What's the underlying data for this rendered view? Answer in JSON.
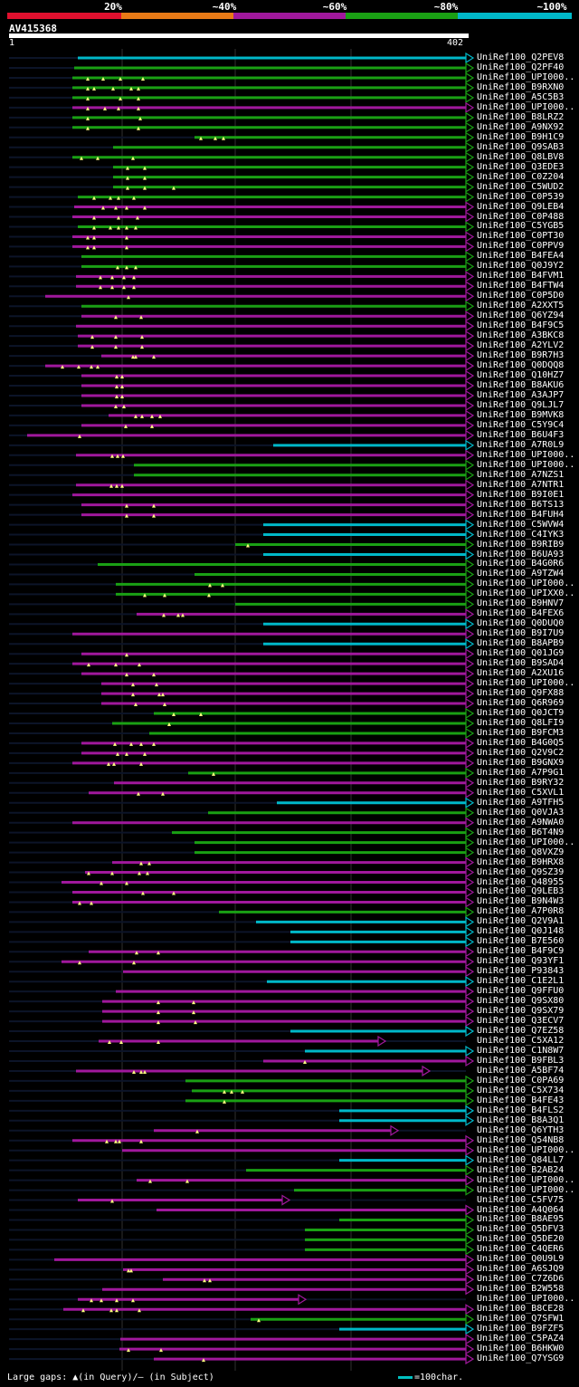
{
  "legend": {
    "labels": [
      "20%",
      "~40%",
      "~60%",
      "~80%",
      "~100%"
    ],
    "colors": [
      "#e0102e",
      "#e87a16",
      "#a0189c",
      "#1aa014",
      "#00b8c8"
    ]
  },
  "query": {
    "id": "AV415368",
    "start": "1",
    "end": "402"
  },
  "colors": {
    "cyan": "#00b8c8",
    "green": "#1aa014",
    "magenta": "#a0189c",
    "grid": "#303030",
    "dark": "#0c1428"
  },
  "hits": [
    {
      "label": "UniRef100_Q2PEV8",
      "c": "cyan",
      "s": 86,
      "e": 515,
      "t": []
    },
    {
      "label": "UniRef100_Q2PF40",
      "c": "green",
      "s": 82,
      "e": 515,
      "t": []
    },
    {
      "label": "UniRef100_UPI000..",
      "c": "green",
      "s": 80,
      "e": 515,
      "t": [
        97,
        114,
        133,
        158
      ]
    },
    {
      "label": "UniRef100_B9RXN0",
      "c": "green",
      "s": 80,
      "e": 515,
      "t": [
        97,
        104,
        125,
        145,
        153
      ]
    },
    {
      "label": "UniRef100_A5C5B3",
      "c": "green",
      "s": 80,
      "e": 515,
      "t": [
        97,
        133,
        153
      ]
    },
    {
      "label": "UniRef100_UPI000..",
      "c": "magenta",
      "s": 80,
      "e": 515,
      "t": [
        97,
        116,
        131,
        153
      ]
    },
    {
      "label": "UniRef100_B8LRZ2",
      "c": "green",
      "s": 80,
      "e": 515,
      "t": [
        97,
        155
      ]
    },
    {
      "label": "UniRef100_A9NX92",
      "c": "green",
      "s": 80,
      "e": 515,
      "t": [
        97,
        153
      ]
    },
    {
      "label": "UniRef100_B9H1C9",
      "c": "green",
      "s": 215,
      "e": 515,
      "t": [
        222,
        238,
        247
      ]
    },
    {
      "label": "UniRef100_Q9SAB3",
      "c": "green",
      "s": 125,
      "e": 515,
      "t": []
    },
    {
      "label": "UniRef100_Q8LBV8",
      "c": "green",
      "s": 80,
      "e": 515,
      "t": [
        90,
        108,
        147
      ]
    },
    {
      "label": "UniRef100_Q3EDE3",
      "c": "green",
      "s": 125,
      "e": 515,
      "t": [
        141,
        160
      ]
    },
    {
      "label": "UniRef100_C0Z204",
      "c": "green",
      "s": 125,
      "e": 515,
      "t": [
        141,
        160
      ]
    },
    {
      "label": "UniRef100_C5WUD2",
      "c": "green",
      "s": 125,
      "e": 515,
      "t": [
        141,
        160,
        192
      ]
    },
    {
      "label": "UniRef100_C0P539",
      "c": "green",
      "s": 86,
      "e": 515,
      "t": [
        104,
        122,
        131,
        148
      ]
    },
    {
      "label": "UniRef100_Q9LEB4",
      "c": "magenta",
      "s": 82,
      "e": 515,
      "t": [
        114,
        128,
        140,
        160
      ]
    },
    {
      "label": "UniRef100_C0P488",
      "c": "magenta",
      "s": 80,
      "e": 515,
      "t": [
        104,
        131,
        152
      ]
    },
    {
      "label": "UniRef100_C5YGB5",
      "c": "green",
      "s": 86,
      "e": 515,
      "t": [
        104,
        122,
        131,
        140,
        150
      ]
    },
    {
      "label": "UniRef100_C0PT30",
      "c": "magenta",
      "s": 80,
      "e": 515,
      "t": [
        97,
        104,
        140
      ]
    },
    {
      "label": "UniRef100_C0PPV9",
      "c": "magenta",
      "s": 80,
      "e": 515,
      "t": [
        97,
        104,
        140
      ]
    },
    {
      "label": "UniRef100_B4FEA4",
      "c": "green",
      "s": 90,
      "e": 515,
      "t": []
    },
    {
      "label": "UniRef100_Q0J9Y2",
      "c": "green",
      "s": 90,
      "e": 515,
      "t": [
        130,
        140,
        150
      ]
    },
    {
      "label": "UniRef100_B4FVM1",
      "c": "magenta",
      "s": 84,
      "e": 515,
      "t": [
        111,
        124,
        137,
        148
      ]
    },
    {
      "label": "UniRef100_B4FTW4",
      "c": "magenta",
      "s": 84,
      "e": 515,
      "t": [
        111,
        124,
        137,
        148
      ]
    },
    {
      "label": "UniRef100_C0P5D0",
      "c": "magenta",
      "s": 50,
      "e": 515,
      "t": [
        142
      ]
    },
    {
      "label": "UniRef100_A2XXT5",
      "c": "green",
      "s": 90,
      "e": 515,
      "t": []
    },
    {
      "label": "UniRef100_Q6YZ94",
      "c": "magenta",
      "s": 90,
      "e": 515,
      "t": [
        128,
        156
      ]
    },
    {
      "label": "UniRef100_B4F9C5",
      "c": "magenta",
      "s": 84,
      "e": 515,
      "t": []
    },
    {
      "label": "UniRef100_A3BKC8",
      "c": "magenta",
      "s": 86,
      "e": 515,
      "t": [
        102,
        128,
        157
      ]
    },
    {
      "label": "UniRef100_A2YLV2",
      "c": "magenta",
      "s": 86,
      "e": 515,
      "t": [
        102,
        128,
        157
      ]
    },
    {
      "label": "UniRef100_B9R7H3",
      "c": "magenta",
      "s": 112,
      "e": 515,
      "t": [
        147,
        150,
        170
      ]
    },
    {
      "label": "UniRef100_Q0DQQ8",
      "c": "magenta",
      "s": 50,
      "e": 515,
      "t": [
        69,
        87,
        101,
        108
      ]
    },
    {
      "label": "UniRef100_Q10HZ7",
      "c": "magenta",
      "s": 90,
      "e": 515,
      "t": [
        129,
        135
      ]
    },
    {
      "label": "UniRef100_B8AKU6",
      "c": "magenta",
      "s": 90,
      "e": 515,
      "t": [
        129,
        135
      ]
    },
    {
      "label": "UniRef100_A3AJP7",
      "c": "magenta",
      "s": 90,
      "e": 515,
      "t": [
        129,
        135
      ]
    },
    {
      "label": "UniRef100_Q9LJL7",
      "c": "magenta",
      "s": 90,
      "e": 515,
      "t": [
        128,
        137
      ]
    },
    {
      "label": "UniRef100_B9MVK8",
      "c": "magenta",
      "s": 120,
      "e": 515,
      "t": [
        150,
        157,
        168,
        177
      ]
    },
    {
      "label": "UniRef100_C5Y9C4",
      "c": "magenta",
      "s": 90,
      "e": 515,
      "t": [
        139,
        168
      ]
    },
    {
      "label": "UniRef100_B6U4F3",
      "c": "magenta",
      "s": 30,
      "e": 515,
      "t": [
        88
      ]
    },
    {
      "label": "UniRef100_A7R0L9",
      "c": "cyan",
      "s": 302,
      "e": 515,
      "t": []
    },
    {
      "label": "UniRef100_UPI000..",
      "c": "magenta",
      "s": 84,
      "e": 515,
      "t": [
        124,
        130,
        136
      ]
    },
    {
      "label": "UniRef100_UPI000..",
      "c": "green",
      "s": 148,
      "e": 515,
      "t": []
    },
    {
      "label": "UniRef100_A7NZS1",
      "c": "green",
      "s": 148,
      "e": 515,
      "t": []
    },
    {
      "label": "UniRef100_A7NTR1",
      "c": "magenta",
      "s": 84,
      "e": 515,
      "t": [
        123,
        129,
        135
      ]
    },
    {
      "label": "UniRef100_B9I0E1",
      "c": "magenta",
      "s": 80,
      "e": 515,
      "t": []
    },
    {
      "label": "UniRef100_B6TS13",
      "c": "magenta",
      "s": 90,
      "e": 515,
      "t": [
        140,
        170
      ]
    },
    {
      "label": "UniRef100_B4FUH4",
      "c": "magenta",
      "s": 90,
      "e": 515,
      "t": [
        140,
        170
      ]
    },
    {
      "label": "UniRef100_C5WVW4",
      "c": "cyan",
      "s": 291,
      "e": 515,
      "t": []
    },
    {
      "label": "UniRef100_C4IYK3",
      "c": "cyan",
      "s": 291,
      "e": 515,
      "t": []
    },
    {
      "label": "UniRef100_B9RIB9",
      "c": "green",
      "s": 260,
      "e": 515,
      "t": [
        274
      ]
    },
    {
      "label": "UniRef100_B6UA93",
      "c": "cyan",
      "s": 291,
      "e": 515,
      "t": []
    },
    {
      "label": "UniRef100_B4G0R6",
      "c": "green",
      "s": 108,
      "e": 515,
      "t": []
    },
    {
      "label": "UniRef100_A9TZW4",
      "c": "green",
      "s": 215,
      "e": 515,
      "t": []
    },
    {
      "label": "UniRef100_UPI000..",
      "c": "green",
      "s": 128,
      "e": 515,
      "t": [
        232,
        246
      ]
    },
    {
      "label": "UniRef100_UPIXX0..",
      "c": "green",
      "s": 128,
      "e": 515,
      "t": [
        160,
        182,
        231
      ]
    },
    {
      "label": "UniRef100_B9HNV7",
      "c": "green",
      "s": 260,
      "e": 515,
      "t": []
    },
    {
      "label": "UniRef100_B4FEX6",
      "c": "magenta",
      "s": 151,
      "e": 515,
      "t": [
        181,
        197,
        202
      ]
    },
    {
      "label": "UniRef100_Q0DUQ0",
      "c": "cyan",
      "s": 291,
      "e": 515,
      "t": []
    },
    {
      "label": "UniRef100_B9I7U9",
      "c": "magenta",
      "s": 80,
      "e": 515,
      "t": []
    },
    {
      "label": "UniRef100_B8APB9",
      "c": "cyan",
      "s": 291,
      "e": 515,
      "t": []
    },
    {
      "label": "UniRef100_Q01JG9",
      "c": "magenta",
      "s": 90,
      "e": 515,
      "t": [
        140
      ]
    },
    {
      "label": "UniRef100_B9SAD4",
      "c": "magenta",
      "s": 80,
      "e": 515,
      "t": [
        98,
        128,
        154
      ]
    },
    {
      "label": "UniRef100_A2XU16",
      "c": "magenta",
      "s": 90,
      "e": 515,
      "t": [
        140,
        170
      ]
    },
    {
      "label": "UniRef100_UPI000..",
      "c": "magenta",
      "s": 112,
      "e": 515,
      "t": [
        147,
        173
      ]
    },
    {
      "label": "UniRef100_Q9FX88",
      "c": "magenta",
      "s": 112,
      "e": 515,
      "t": [
        147,
        176,
        180
      ]
    },
    {
      "label": "UniRef100_Q6R969",
      "c": "magenta",
      "s": 112,
      "e": 515,
      "t": [
        150,
        182
      ]
    },
    {
      "label": "UniRef100_Q0JCT9",
      "c": "green",
      "s": 170,
      "e": 515,
      "t": [
        192,
        222
      ]
    },
    {
      "label": "UniRef100_Q8LFI9",
      "c": "green",
      "s": 124,
      "e": 515,
      "t": [
        187
      ]
    },
    {
      "label": "UniRef100_B9FCM3",
      "c": "green",
      "s": 165,
      "e": 515,
      "t": []
    },
    {
      "label": "UniRef100_B4G0Q5",
      "c": "magenta",
      "s": 90,
      "e": 515,
      "t": [
        127,
        145,
        156,
        170
      ]
    },
    {
      "label": "UniRef100_Q2V9C2",
      "c": "magenta",
      "s": 90,
      "e": 515,
      "t": [
        130,
        140,
        160
      ]
    },
    {
      "label": "UniRef100_B9GNX9",
      "c": "magenta",
      "s": 80,
      "e": 515,
      "t": [
        120,
        126,
        156
      ]
    },
    {
      "label": "UniRef100_A7P9G1",
      "c": "green",
      "s": 208,
      "e": 515,
      "t": [
        236
      ]
    },
    {
      "label": "UniRef100_B9RY32",
      "c": "magenta",
      "s": 126,
      "e": 515,
      "t": []
    },
    {
      "label": "UniRef100_C5XVL1",
      "c": "magenta",
      "s": 98,
      "e": 515,
      "t": [
        153,
        180
      ]
    },
    {
      "label": "UniRef100_A9TFH5",
      "c": "cyan",
      "s": 306,
      "e": 515,
      "t": []
    },
    {
      "label": "UniRef100_Q0VJA3",
      "c": "green",
      "s": 230,
      "e": 515,
      "t": []
    },
    {
      "label": "UniRef100_A9NWA0",
      "c": "magenta",
      "s": 80,
      "e": 515,
      "t": []
    },
    {
      "label": "UniRef100_B6T4N9",
      "c": "green",
      "s": 190,
      "e": 515,
      "t": []
    },
    {
      "label": "UniRef100_UPI000..",
      "c": "green",
      "s": 215,
      "e": 515,
      "t": []
    },
    {
      "label": "UniRef100_Q8VXZ9",
      "c": "green",
      "s": 215,
      "e": 515,
      "t": []
    },
    {
      "label": "UniRef100_B9HRX8",
      "c": "magenta",
      "s": 124,
      "e": 515,
      "t": [
        156,
        165
      ]
    },
    {
      "label": "UniRef100_Q9SZ39",
      "c": "magenta",
      "s": 94,
      "e": 515,
      "t": [
        98,
        124,
        154,
        163
      ]
    },
    {
      "label": "UniRef100_Q48955",
      "c": "magenta",
      "s": 68,
      "e": 515,
      "t": [
        112,
        140
      ]
    },
    {
      "label": "UniRef100_Q9LEB3",
      "c": "magenta",
      "s": 80,
      "e": 515,
      "t": [
        158,
        192
      ]
    },
    {
      "label": "UniRef100_B9N4W3",
      "c": "magenta",
      "s": 80,
      "e": 515,
      "t": [
        88,
        101
      ]
    },
    {
      "label": "UniRef100_A7P0R8",
      "c": "green",
      "s": 242,
      "e": 515,
      "t": []
    },
    {
      "label": "UniRef100_Q2V9A1",
      "c": "cyan",
      "s": 283,
      "e": 515,
      "t": []
    },
    {
      "label": "UniRef100_Q0J148",
      "c": "cyan",
      "s": 321,
      "e": 515,
      "t": []
    },
    {
      "label": "UniRef100_B7E560",
      "c": "cyan",
      "s": 321,
      "e": 515,
      "t": []
    },
    {
      "label": "UniRef100_B4F9C9",
      "c": "magenta",
      "s": 98,
      "e": 515,
      "t": [
        151,
        175
      ]
    },
    {
      "label": "UniRef100_Q93YF1",
      "c": "magenta",
      "s": 68,
      "e": 515,
      "t": [
        88,
        148
      ]
    },
    {
      "label": "UniRef100_P93843",
      "c": "magenta",
      "s": 136,
      "e": 515,
      "t": []
    },
    {
      "label": "UniRef100_C1E2L1",
      "c": "cyan",
      "s": 295,
      "e": 515,
      "t": []
    },
    {
      "label": "UniRef100_Q9FFU0",
      "c": "magenta",
      "s": 128,
      "e": 515,
      "t": []
    },
    {
      "label": "UniRef100_Q9SX80",
      "c": "magenta",
      "s": 113,
      "e": 515,
      "t": [
        175,
        214
      ]
    },
    {
      "label": "UniRef100_Q9SX79",
      "c": "magenta",
      "s": 113,
      "e": 515,
      "t": [
        175,
        214
      ]
    },
    {
      "label": "UniRef100_Q3ECV7",
      "c": "magenta",
      "s": 113,
      "e": 515,
      "t": [
        175,
        216
      ]
    },
    {
      "label": "UniRef100_Q7EZ58",
      "c": "cyan",
      "s": 321,
      "e": 515,
      "t": []
    },
    {
      "label": "UniRef100_C5XA12",
      "c": "magenta",
      "s": 109,
      "e": 418,
      "t": [
        121,
        134,
        175
      ]
    },
    {
      "label": "UniRef100_C1N8W7",
      "c": "cyan",
      "s": 337,
      "e": 515,
      "t": []
    },
    {
      "label": "UniRef100_B9FBL3",
      "c": "magenta",
      "s": 291,
      "e": 515,
      "t": [
        337
      ]
    },
    {
      "label": "UniRef100_A5BF74",
      "c": "magenta",
      "s": 84,
      "e": 467,
      "t": [
        148,
        156,
        160
      ]
    },
    {
      "label": "UniRef100_C0PA69",
      "c": "green",
      "s": 205,
      "e": 515,
      "t": []
    },
    {
      "label": "UniRef100_C5X734",
      "c": "green",
      "s": 212,
      "e": 515,
      "t": [
        248,
        256,
        268
      ]
    },
    {
      "label": "UniRef100_B4FE43",
      "c": "green",
      "s": 205,
      "e": 515,
      "t": [
        248
      ]
    },
    {
      "label": "UniRef100_B4FLS2",
      "c": "cyan",
      "s": 375,
      "e": 515,
      "t": []
    },
    {
      "label": "UniRef100_B8A3Q1",
      "c": "cyan",
      "s": 375,
      "e": 515,
      "t": []
    },
    {
      "label": "UniRef100_Q6YTH3",
      "c": "magenta",
      "s": 170,
      "e": 432,
      "t": [
        218
      ]
    },
    {
      "label": "UniRef100_Q54NB8",
      "c": "magenta",
      "s": 80,
      "e": 515,
      "t": [
        118,
        128,
        132,
        156
      ]
    },
    {
      "label": "UniRef100_UPI000..",
      "c": "magenta",
      "s": 135,
      "e": 515,
      "t": []
    },
    {
      "label": "UniRef100_Q84LL7",
      "c": "cyan",
      "s": 375,
      "e": 515,
      "t": []
    },
    {
      "label": "UniRef100_B2AB24",
      "c": "green",
      "s": 272,
      "e": 515,
      "t": []
    },
    {
      "label": "UniRef100_UPI000..",
      "c": "magenta",
      "s": 151,
      "e": 515,
      "t": [
        166,
        207
      ]
    },
    {
      "label": "UniRef100_UPI000..",
      "c": "green",
      "s": 325,
      "e": 515,
      "t": []
    },
    {
      "label": "UniRef100_C5FV75",
      "c": "magenta",
      "s": 86,
      "e": 312,
      "t": [
        124
      ]
    },
    {
      "label": "UniRef100_A4Q064",
      "c": "magenta",
      "s": 173,
      "e": 515,
      "t": []
    },
    {
      "label": "UniRef100_B8AE95",
      "c": "green",
      "s": 375,
      "e": 515,
      "t": []
    },
    {
      "label": "UniRef100_Q5DFV3",
      "c": "green",
      "s": 337,
      "e": 515,
      "t": []
    },
    {
      "label": "UniRef100_Q5DE20",
      "c": "green",
      "s": 337,
      "e": 515,
      "t": []
    },
    {
      "label": "UniRef100_C4QER6",
      "c": "green",
      "s": 337,
      "e": 515,
      "t": []
    },
    {
      "label": "UniRef100_Q0U9L9",
      "c": "magenta",
      "s": 60,
      "e": 515,
      "t": []
    },
    {
      "label": "UniRef100_A6SJQ9",
      "c": "magenta",
      "s": 136,
      "e": 515,
      "t": [
        142,
        145
      ]
    },
    {
      "label": "UniRef100_C7Z6D6",
      "c": "magenta",
      "s": 180,
      "e": 515,
      "t": [
        226,
        232
      ]
    },
    {
      "label": "UniRef100_B2W558",
      "c": "magenta",
      "s": 113,
      "e": 515,
      "t": []
    },
    {
      "label": "UniRef100_UPI000..",
      "c": "magenta",
      "s": 86,
      "e": 330,
      "t": [
        101,
        112,
        129,
        147
      ]
    },
    {
      "label": "UniRef100_B8CE28",
      "c": "magenta",
      "s": 70,
      "e": 515,
      "t": [
        92,
        123,
        129,
        154
      ]
    },
    {
      "label": "UniRef100_Q7SFW1",
      "c": "green",
      "s": 277,
      "e": 515,
      "t": [
        286
      ]
    },
    {
      "label": "UniRef100_B9FZF5",
      "c": "cyan",
      "s": 375,
      "e": 515,
      "t": []
    },
    {
      "label": "UniRef100_C5PAZ4",
      "c": "magenta",
      "s": 133,
      "e": 515,
      "t": []
    },
    {
      "label": "UniRef100_B6HKW0",
      "c": "magenta",
      "s": 132,
      "e": 515,
      "t": [
        142,
        178
      ]
    },
    {
      "label": "UniRef100_Q7YSG9",
      "c": "magenta",
      "s": 170,
      "e": 515,
      "t": [
        225
      ]
    }
  ],
  "footer": {
    "gaps_text": "Large gaps: ▲(in Query)/– (in Subject)",
    "scale_text": "=100char."
  }
}
